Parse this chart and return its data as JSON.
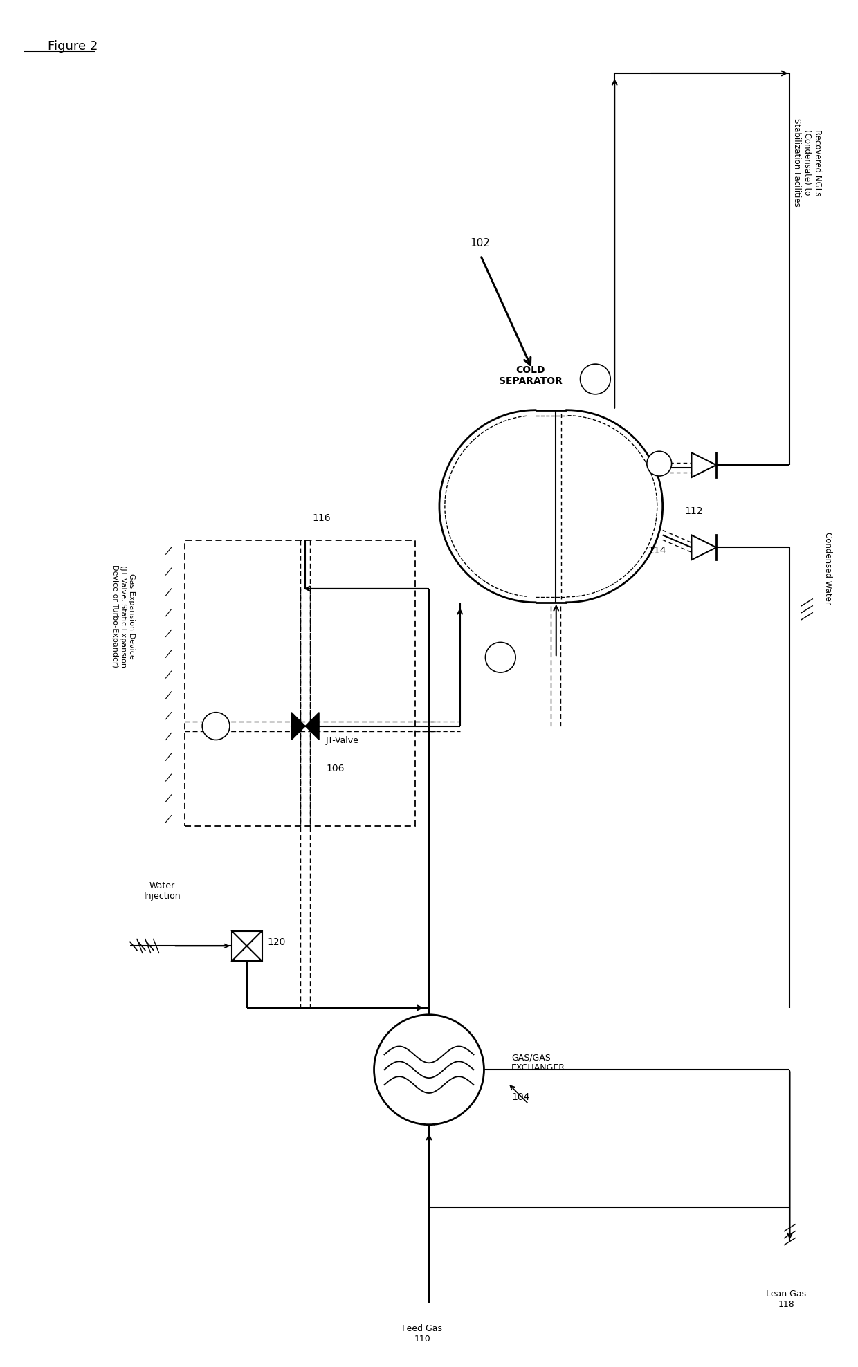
{
  "bg_color": "white",
  "line_color": "black",
  "figsize": [
    12.4,
    19.76
  ],
  "dpi": 100,
  "figure_title": "Figure 2",
  "label_102": "102",
  "label_104": "104",
  "label_106": "106",
  "label_112": "112",
  "label_114": "114",
  "label_116": "116",
  "label_120": "120",
  "label_cold_sep": "COLD\nSEPARATOR",
  "label_gas_exch": "GAS/GAS\nEXCHANGER",
  "label_jt_valve": "JT-Valve",
  "label_water_inj": "Water\nInjection",
  "label_feed_gas": "Feed Gas\n110",
  "label_lean_gas": "Lean Gas\n118",
  "label_recovered": "Recovered NGLs\n(Condensate) to\nStabilization Facilities",
  "label_cond_water": "Condensed Water",
  "label_gas_exp": "Gas Expansion Device\n(JT Valve, Static Expansion\nDevice or Turbo-Expander)"
}
